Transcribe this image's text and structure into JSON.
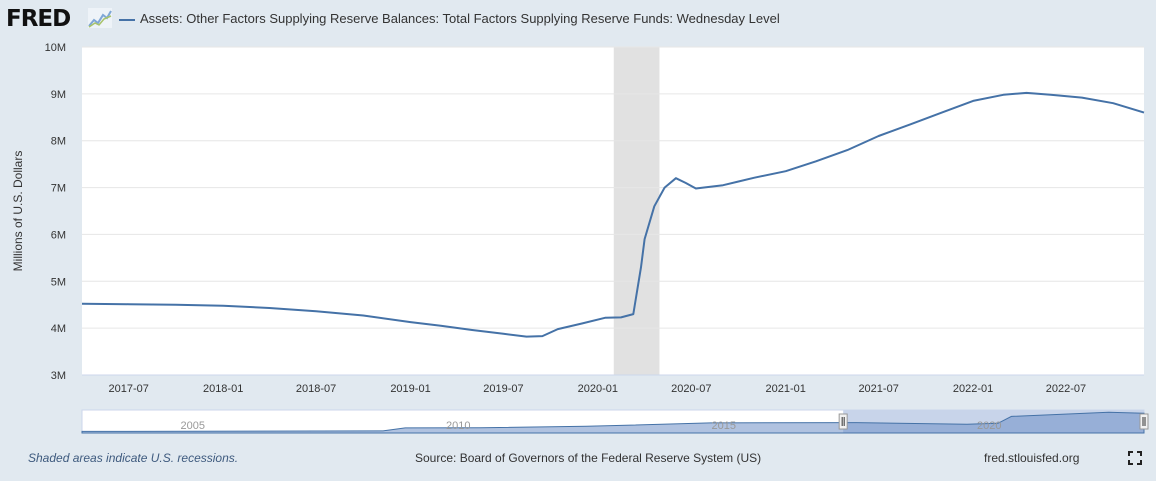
{
  "header": {
    "logo_text": "FRED",
    "series_title": "Assets: Other Factors Supplying Reserve Balances: Total Factors Supplying Reserve Funds: Wednesday Level"
  },
  "footer": {
    "recession_note": "Shaded areas indicate U.S. recessions.",
    "source": "Source: Board of Governors of the Federal Reserve System (US)",
    "site": "fred.stlouisfed.org"
  },
  "icons": {
    "logo_graph": "fred-graph-icon",
    "fullscreen": "fullscreen-icon"
  },
  "colors": {
    "series": "#4572a7",
    "recession": "#e1e1e1",
    "navigator_fill": "#6f8fc6"
  },
  "chart_data": {
    "type": "line",
    "title": "Assets: Other Factors Supplying Reserve Balances: Total Factors Supplying Reserve Funds: Wednesday Level",
    "ylabel": "Millions of U.S. Dollars",
    "xlabel": "",
    "xlim": [
      "2017-04-01",
      "2022-11-30"
    ],
    "ylim": [
      3000000,
      10000000
    ],
    "y_ticks": [
      3000000,
      4000000,
      5000000,
      6000000,
      7000000,
      8000000,
      9000000,
      10000000
    ],
    "y_tick_labels": [
      "3M",
      "4M",
      "5M",
      "6M",
      "7M",
      "8M",
      "9M",
      "10M"
    ],
    "x_ticks": [
      "2017-07-01",
      "2018-01-01",
      "2018-07-01",
      "2019-01-01",
      "2019-07-01",
      "2020-01-01",
      "2020-07-01",
      "2021-01-01",
      "2021-07-01",
      "2022-01-01",
      "2022-07-01"
    ],
    "x_tick_labels": [
      "2017-07",
      "2018-01",
      "2018-07",
      "2019-01",
      "2019-07",
      "2020-01",
      "2020-07",
      "2021-01",
      "2021-07",
      "2022-01",
      "2022-07"
    ],
    "grid": true,
    "recessions": [
      {
        "start": "2020-02-01",
        "end": "2020-04-30"
      }
    ],
    "series": [
      {
        "name": "Assets: Other Factors Supplying Reserve Balances: Total Factors Supplying Reserve Funds: Wednesday Level",
        "points": [
          [
            "2017-04-01",
            4520000
          ],
          [
            "2017-07-01",
            4510000
          ],
          [
            "2017-10-01",
            4500000
          ],
          [
            "2018-01-01",
            4480000
          ],
          [
            "2018-04-01",
            4430000
          ],
          [
            "2018-07-01",
            4360000
          ],
          [
            "2018-10-01",
            4270000
          ],
          [
            "2019-01-01",
            4130000
          ],
          [
            "2019-03-01",
            4050000
          ],
          [
            "2019-05-01",
            3960000
          ],
          [
            "2019-07-01",
            3880000
          ],
          [
            "2019-08-15",
            3820000
          ],
          [
            "2019-09-15",
            3830000
          ],
          [
            "2019-10-15",
            3980000
          ],
          [
            "2019-12-01",
            4100000
          ],
          [
            "2020-01-15",
            4220000
          ],
          [
            "2020-02-15",
            4230000
          ],
          [
            "2020-03-10",
            4300000
          ],
          [
            "2020-03-25",
            5300000
          ],
          [
            "2020-04-01",
            5900000
          ],
          [
            "2020-04-20",
            6600000
          ],
          [
            "2020-05-10",
            7000000
          ],
          [
            "2020-06-01",
            7200000
          ],
          [
            "2020-06-20",
            7100000
          ],
          [
            "2020-07-10",
            6980000
          ],
          [
            "2020-08-01",
            7010000
          ],
          [
            "2020-09-01",
            7050000
          ],
          [
            "2020-10-01",
            7130000
          ],
          [
            "2020-11-01",
            7210000
          ],
          [
            "2021-01-01",
            7350000
          ],
          [
            "2021-03-01",
            7560000
          ],
          [
            "2021-05-01",
            7800000
          ],
          [
            "2021-07-01",
            8100000
          ],
          [
            "2021-09-01",
            8350000
          ],
          [
            "2021-11-01",
            8600000
          ],
          [
            "2022-01-01",
            8850000
          ],
          [
            "2022-03-01",
            8980000
          ],
          [
            "2022-04-15",
            9020000
          ],
          [
            "2022-06-01",
            8980000
          ],
          [
            "2022-08-01",
            8920000
          ],
          [
            "2022-10-01",
            8800000
          ],
          [
            "2022-11-30",
            8600000
          ]
        ]
      }
    ],
    "navigator": {
      "x_tick_labels": [
        "2005",
        "2010",
        "2015",
        "2020"
      ],
      "x_ticks": [
        "2005-01-01",
        "2010-01-01",
        "2015-01-01",
        "2020-01-01"
      ],
      "range": [
        "2002-12-01",
        "2022-11-30"
      ],
      "selected": [
        "2017-04-01",
        "2022-11-30"
      ],
      "points": [
        [
          "2002-12-01",
          700000
        ],
        [
          "2008-08-01",
          900000
        ],
        [
          "2009-01-01",
          2200000
        ],
        [
          "2010-06-01",
          2300000
        ],
        [
          "2012-06-01",
          2900000
        ],
        [
          "2014-10-01",
          4400000
        ],
        [
          "2017-07-01",
          4500000
        ],
        [
          "2019-08-01",
          3800000
        ],
        [
          "2020-03-01",
          4200000
        ],
        [
          "2020-06-01",
          7200000
        ],
        [
          "2022-04-01",
          9000000
        ],
        [
          "2022-11-30",
          8600000
        ]
      ]
    }
  }
}
